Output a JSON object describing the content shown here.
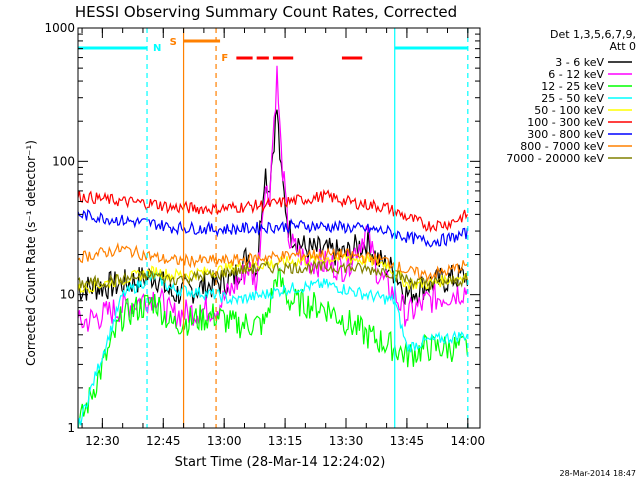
{
  "chart_data": {
    "type": "line",
    "title": "HESSI Observing Summary Count Rates, Corrected",
    "ylabel": "Corrected Count Rate (s⁻¹ detector⁻¹)",
    "xlabel": "Start Time (28-Mar-14 12:24:02)",
    "y_scale": "log",
    "ylim": [
      1,
      1000
    ],
    "xlim": [
      "12:24",
      "14:03"
    ],
    "x_ticks": [
      "12:30",
      "12:45",
      "13:00",
      "13:15",
      "13:30",
      "13:45",
      "14:00"
    ],
    "y_ticks": [
      "1",
      "10",
      "100",
      "1000"
    ],
    "legend_header": [
      "Det 1,3,5,6,7,9,",
      "Att 0"
    ],
    "legend_position": "right",
    "footer_date": "28-Mar-2014 18:47",
    "grid": false,
    "series": [
      {
        "name": "3 - 6 keV",
        "color": "#000000",
        "values": [
          [
            "12:24",
            11
          ],
          [
            "12:35",
            12
          ],
          [
            "12:43",
            14
          ],
          [
            "12:47",
            10
          ],
          [
            "12:58",
            12
          ],
          [
            "13:02",
            13
          ],
          [
            "13:06",
            20
          ],
          [
            "13:08",
            15
          ],
          [
            "13:10",
            90
          ],
          [
            "13:11",
            60
          ],
          [
            "13:13",
            250
          ],
          [
            "13:14",
            80
          ],
          [
            "13:16",
            30
          ],
          [
            "13:20",
            22
          ],
          [
            "13:30",
            20
          ],
          [
            "13:35",
            25
          ],
          [
            "13:38",
            18
          ],
          [
            "13:42",
            15
          ],
          [
            "13:45",
            10
          ],
          [
            "13:50",
            12
          ],
          [
            "14:00",
            14
          ]
        ]
      },
      {
        "name": "6 - 12 keV",
        "color": "#ff00ff",
        "values": [
          [
            "12:24",
            6
          ],
          [
            "12:35",
            8
          ],
          [
            "12:43",
            10
          ],
          [
            "12:47",
            7
          ],
          [
            "12:58",
            8
          ],
          [
            "13:02",
            11
          ],
          [
            "13:06",
            16
          ],
          [
            "13:08",
            12
          ],
          [
            "13:10",
            70
          ],
          [
            "13:11",
            50
          ],
          [
            "13:13",
            450
          ],
          [
            "13:14",
            120
          ],
          [
            "13:16",
            25
          ],
          [
            "13:20",
            18
          ],
          [
            "13:30",
            16
          ],
          [
            "13:35",
            30
          ],
          [
            "13:38",
            14
          ],
          [
            "13:42",
            10
          ],
          [
            "13:45",
            7
          ],
          [
            "13:50",
            9
          ],
          [
            "14:00",
            11
          ]
        ]
      },
      {
        "name": "12 - 25 keV",
        "color": "#00ff00",
        "values": [
          [
            "12:24",
            1
          ],
          [
            "12:35",
            7
          ],
          [
            "12:43",
            9
          ],
          [
            "12:47",
            6
          ],
          [
            "12:58",
            7
          ],
          [
            "13:02",
            6
          ],
          [
            "13:10",
            6
          ],
          [
            "13:13",
            14
          ],
          [
            "13:16",
            9
          ],
          [
            "13:25",
            8
          ],
          [
            "13:35",
            5
          ],
          [
            "13:42",
            4
          ],
          [
            "13:45",
            3.5
          ],
          [
            "13:50",
            4
          ],
          [
            "14:00",
            4
          ]
        ]
      },
      {
        "name": "25 - 50 keV",
        "color": "#00ffff",
        "values": [
          [
            "12:24",
            1
          ],
          [
            "12:35",
            10
          ],
          [
            "12:43",
            14
          ],
          [
            "12:47",
            11
          ],
          [
            "12:58",
            10
          ],
          [
            "13:02",
            9
          ],
          [
            "13:10",
            10
          ],
          [
            "13:15",
            11
          ],
          [
            "13:25",
            12
          ],
          [
            "13:35",
            10
          ],
          [
            "13:42",
            9
          ],
          [
            "13:45",
            4
          ],
          [
            "13:50",
            4.5
          ],
          [
            "14:00",
            5
          ]
        ]
      },
      {
        "name": "50 - 100 keV",
        "color": "#ffff00",
        "values": [
          [
            "12:24",
            11
          ],
          [
            "12:35",
            13
          ],
          [
            "12:43",
            15
          ],
          [
            "12:47",
            14
          ],
          [
            "12:58",
            15
          ],
          [
            "13:02",
            16
          ],
          [
            "13:10",
            17
          ],
          [
            "13:20",
            18
          ],
          [
            "13:30",
            19
          ],
          [
            "13:40",
            17
          ],
          [
            "13:45",
            12
          ],
          [
            "13:50",
            12
          ],
          [
            "14:00",
            14
          ]
        ]
      },
      {
        "name": "100 - 300 keV",
        "color": "#ff0000",
        "values": [
          [
            "12:24",
            55
          ],
          [
            "12:35",
            50
          ],
          [
            "12:43",
            48
          ],
          [
            "12:47",
            45
          ],
          [
            "12:58",
            44
          ],
          [
            "13:02",
            45
          ],
          [
            "13:10",
            47
          ],
          [
            "13:20",
            52
          ],
          [
            "13:25",
            55
          ],
          [
            "13:30",
            50
          ],
          [
            "13:40",
            45
          ],
          [
            "13:45",
            38
          ],
          [
            "13:50",
            33
          ],
          [
            "13:55",
            34
          ],
          [
            "14:00",
            40
          ]
        ]
      },
      {
        "name": "300 - 800 keV",
        "color": "#0000ff",
        "values": [
          [
            "12:24",
            40
          ],
          [
            "12:35",
            36
          ],
          [
            "12:43",
            34
          ],
          [
            "12:47",
            32
          ],
          [
            "12:58",
            31
          ],
          [
            "13:02",
            31
          ],
          [
            "13:10",
            32
          ],
          [
            "13:20",
            33
          ],
          [
            "13:30",
            32
          ],
          [
            "13:40",
            30
          ],
          [
            "13:45",
            27
          ],
          [
            "13:50",
            25
          ],
          [
            "13:55",
            26
          ],
          [
            "14:00",
            29
          ]
        ]
      },
      {
        "name": "800 - 7000 keV",
        "color": "#ff8000",
        "values": [
          [
            "12:24",
            19
          ],
          [
            "12:35",
            22
          ],
          [
            "12:43",
            19
          ],
          [
            "12:47",
            18
          ],
          [
            "12:58",
            18
          ],
          [
            "13:02",
            18
          ],
          [
            "13:10",
            19
          ],
          [
            "13:20",
            20
          ],
          [
            "13:30",
            20
          ],
          [
            "13:40",
            18
          ],
          [
            "13:45",
            15
          ],
          [
            "13:50",
            14
          ],
          [
            "13:55",
            15
          ],
          [
            "14:00",
            17
          ]
        ]
      },
      {
        "name": "7000 - 20000 keV",
        "color": "#808000",
        "values": [
          [
            "12:24",
            12
          ],
          [
            "12:35",
            13
          ],
          [
            "12:43",
            14
          ],
          [
            "12:47",
            13
          ],
          [
            "12:58",
            14
          ],
          [
            "13:02",
            15
          ],
          [
            "13:10",
            16
          ],
          [
            "13:20",
            16
          ],
          [
            "13:30",
            16
          ],
          [
            "13:40",
            15
          ],
          [
            "13:45",
            13
          ],
          [
            "13:50",
            12
          ],
          [
            "14:00",
            13
          ]
        ]
      }
    ],
    "annotations": {
      "night_label": "N",
      "saa_label": "S",
      "flare_label": "F",
      "night_intervals": [
        [
          "12:24",
          "12:41"
        ],
        [
          "13:42",
          "14:00"
        ]
      ],
      "saa_interval": [
        "12:50",
        "12:58"
      ],
      "flare_intervals": [
        [
          "13:03",
          "13:07"
        ],
        [
          "13:08",
          "13:11"
        ],
        [
          "13:12",
          "13:17"
        ],
        [
          "13:29",
          "13:34"
        ]
      ],
      "cyan_vlines": [
        "12:41",
        "13:42",
        "14:00"
      ],
      "orange_vlines": [
        "12:50",
        "12:58"
      ]
    }
  }
}
